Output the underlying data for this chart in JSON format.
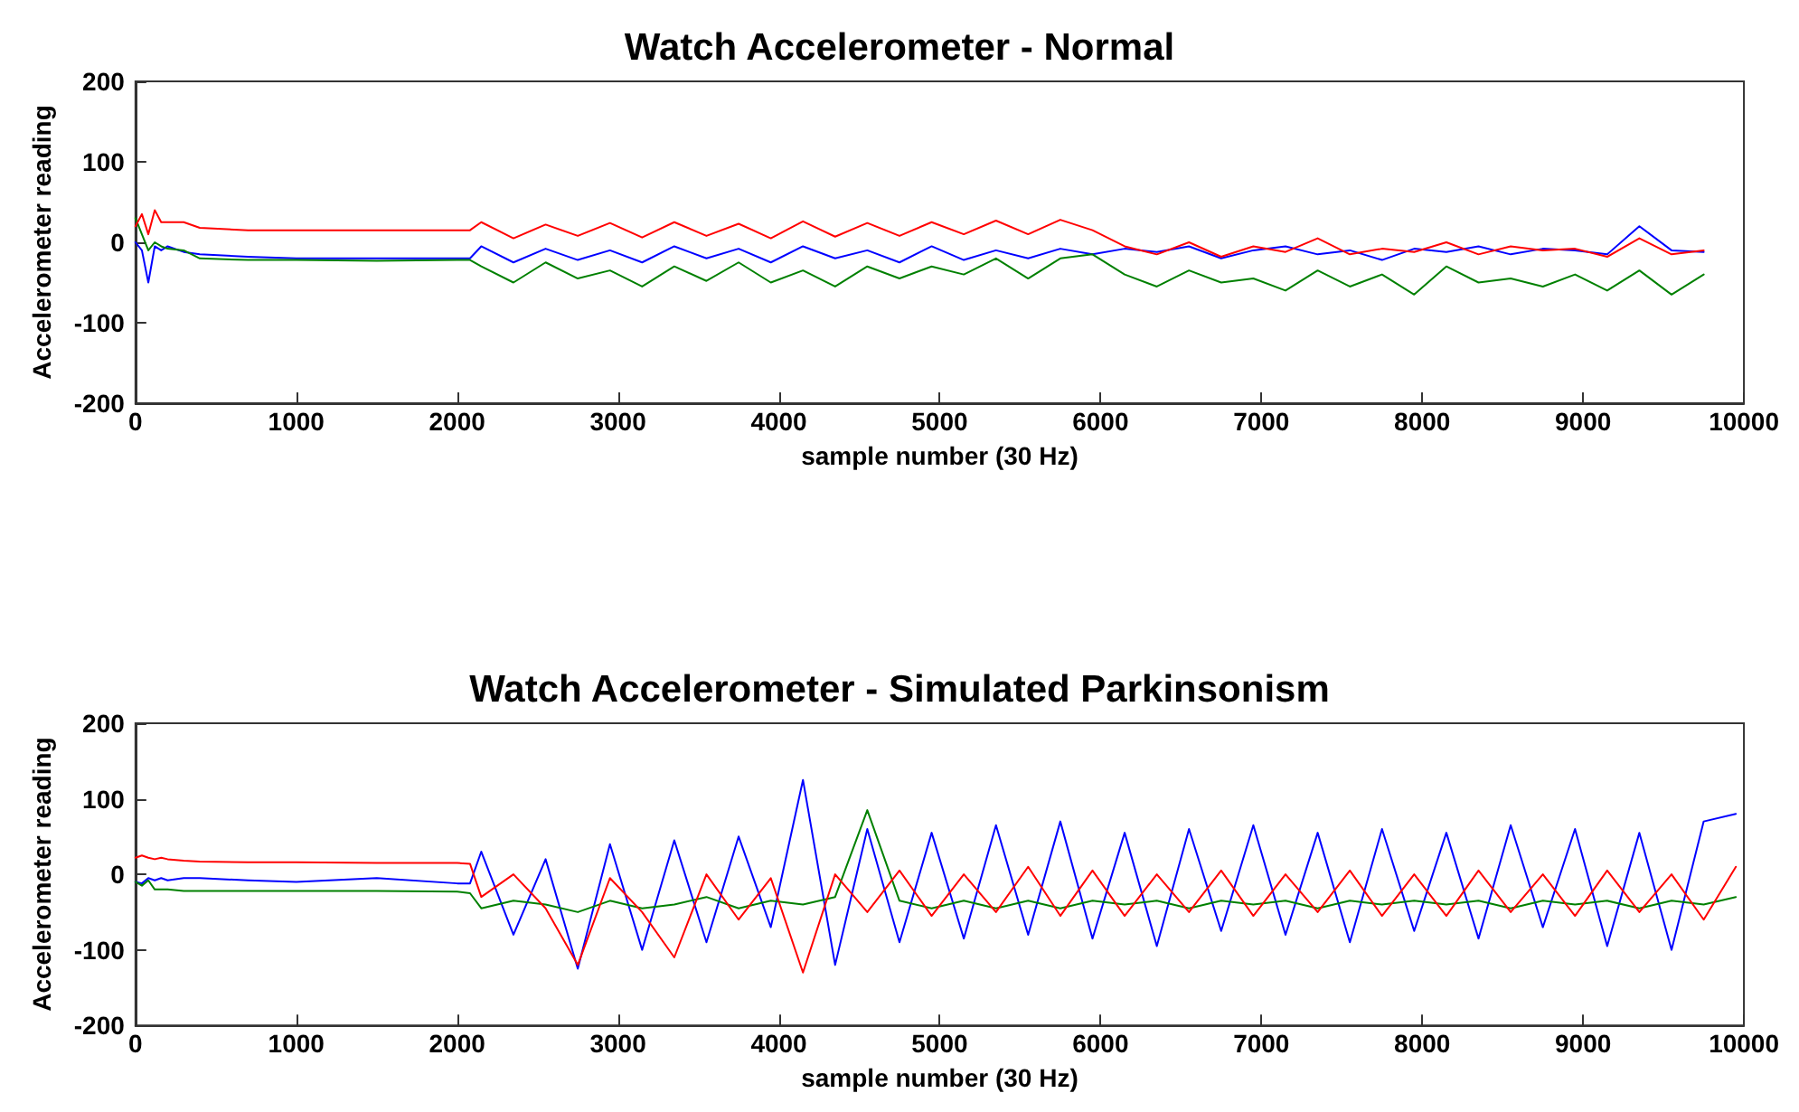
{
  "chart_data": [
    {
      "type": "line",
      "title": "Watch Accelerometer - Normal",
      "xlabel": "sample number (30 Hz)",
      "ylabel": "Accelerometer reading",
      "xlim": [
        0,
        10000
      ],
      "xticks": [
        0,
        1000,
        2000,
        3000,
        4000,
        5000,
        6000,
        7000,
        8000,
        9000,
        10000
      ],
      "ylim": [
        -200,
        200
      ],
      "yticks": [
        -200,
        -100,
        0,
        100,
        200
      ],
      "grid": false,
      "x": [
        0,
        40,
        80,
        120,
        160,
        200,
        300,
        400,
        700,
        1000,
        1500,
        2000,
        2080,
        2150,
        2350,
        2550,
        2750,
        2950,
        3150,
        3350,
        3550,
        3750,
        3950,
        4150,
        4350,
        4550,
        4750,
        4950,
        5150,
        5350,
        5550,
        5750,
        5950,
        6150,
        6350,
        6550,
        6750,
        6950,
        7150,
        7350,
        7550,
        7750,
        7950,
        8150,
        8350,
        8550,
        8750,
        8950,
        9150,
        9350,
        9550,
        9750
      ],
      "series": [
        {
          "color": "#0000ff",
          "values": [
            0,
            -10,
            -50,
            -5,
            -10,
            -5,
            -12,
            -15,
            -18,
            -20,
            -20,
            -20,
            -20,
            -5,
            -25,
            -8,
            -22,
            -10,
            -25,
            -5,
            -20,
            -8,
            -25,
            -5,
            -20,
            -10,
            -25,
            -5,
            -22,
            -10,
            -20,
            -8,
            -15,
            -8,
            -12,
            -5,
            -20,
            -10,
            -5,
            -15,
            -10,
            -22,
            -8,
            -12,
            -5,
            -15,
            -8,
            -10,
            -15,
            20,
            -10,
            -12
          ]
        },
        {
          "color": "#008000",
          "values": [
            30,
            10,
            -10,
            0,
            -5,
            -8,
            -10,
            -20,
            -22,
            -22,
            -23,
            -22,
            -22,
            -30,
            -50,
            -25,
            -45,
            -35,
            -55,
            -30,
            -48,
            -25,
            -50,
            -35,
            -55,
            -30,
            -45,
            -30,
            -40,
            -20,
            -45,
            -20,
            -15,
            -40,
            -55,
            -35,
            -50,
            -45,
            -60,
            -35,
            -55,
            -40,
            -65,
            -30,
            -50,
            -45,
            -55,
            -40,
            -60,
            -35,
            -65,
            -40
          ]
        },
        {
          "color": "#ff0000",
          "values": [
            20,
            35,
            10,
            40,
            25,
            25,
            25,
            18,
            15,
            15,
            15,
            15,
            15,
            25,
            5,
            22,
            8,
            24,
            6,
            25,
            8,
            23,
            5,
            26,
            7,
            24,
            8,
            25,
            10,
            27,
            10,
            28,
            15,
            -5,
            -15,
            0,
            -18,
            -5,
            -12,
            5,
            -15,
            -8,
            -12,
            0,
            -15,
            -5,
            -10,
            -8,
            -18,
            5,
            -15,
            -10
          ]
        }
      ]
    },
    {
      "type": "line",
      "title": "Watch Accelerometer - Simulated Parkinsonism",
      "xlabel": "sample number (30 Hz)",
      "ylabel": "Accelerometer reading",
      "xlim": [
        0,
        10000
      ],
      "xticks": [
        0,
        1000,
        2000,
        3000,
        4000,
        5000,
        6000,
        7000,
        8000,
        9000,
        10000
      ],
      "ylim": [
        -200,
        200
      ],
      "yticks": [
        -200,
        -100,
        0,
        100,
        200
      ],
      "grid": false,
      "x": [
        0,
        40,
        80,
        120,
        160,
        200,
        300,
        400,
        700,
        1000,
        1500,
        2000,
        2080,
        2150,
        2350,
        2550,
        2750,
        2950,
        3150,
        3350,
        3550,
        3750,
        3950,
        4150,
        4350,
        4550,
        4750,
        4950,
        5150,
        5350,
        5550,
        5750,
        5950,
        6150,
        6350,
        6550,
        6750,
        6950,
        7150,
        7350,
        7550,
        7750,
        7950,
        8150,
        8350,
        8550,
        8750,
        8950,
        9150,
        9350,
        9550,
        9750,
        9950
      ],
      "series": [
        {
          "color": "#0000ff",
          "values": [
            -10,
            -12,
            -5,
            -8,
            -5,
            -8,
            -5,
            -5,
            -8,
            -10,
            -5,
            -12,
            -12,
            30,
            -80,
            20,
            -125,
            40,
            -100,
            45,
            -90,
            50,
            -70,
            125,
            -120,
            60,
            -90,
            55,
            -85,
            65,
            -80,
            70,
            -85,
            55,
            -95,
            60,
            -75,
            65,
            -80,
            55,
            -90,
            60,
            -75,
            55,
            -85,
            65,
            -70,
            60,
            -95,
            55,
            -100,
            70,
            80
          ]
        },
        {
          "color": "#008000",
          "values": [
            -10,
            -15,
            -8,
            -20,
            -20,
            -20,
            -22,
            -22,
            -22,
            -22,
            -22,
            -23,
            -25,
            -45,
            -35,
            -40,
            -50,
            -35,
            -45,
            -40,
            -30,
            -45,
            -35,
            -40,
            -30,
            85,
            -35,
            -45,
            -35,
            -45,
            -35,
            -45,
            -35,
            -40,
            -35,
            -45,
            -35,
            -40,
            -35,
            -45,
            -35,
            -40,
            -35,
            -40,
            -35,
            -45,
            -35,
            -40,
            -35,
            -45,
            -35,
            -40,
            -30
          ]
        },
        {
          "color": "#ff0000",
          "values": [
            22,
            25,
            22,
            20,
            22,
            20,
            18,
            17,
            16,
            16,
            15,
            15,
            14,
            -30,
            0,
            -45,
            -120,
            -5,
            -50,
            -110,
            0,
            -60,
            -5,
            -130,
            0,
            -50,
            5,
            -55,
            0,
            -50,
            10,
            -55,
            5,
            -55,
            0,
            -50,
            5,
            -55,
            0,
            -50,
            5,
            -55,
            0,
            -55,
            5,
            -50,
            0,
            -55,
            5,
            -50,
            0,
            -60,
            10
          ]
        }
      ]
    }
  ]
}
